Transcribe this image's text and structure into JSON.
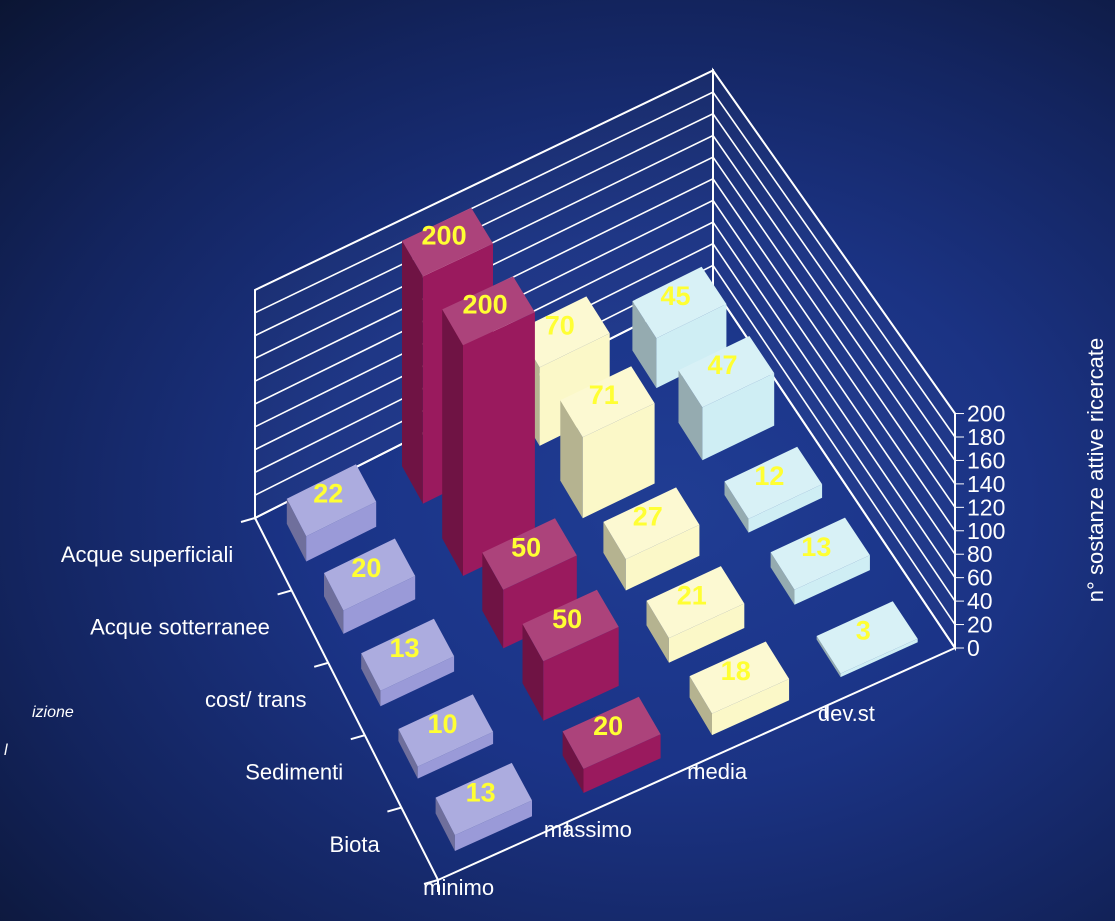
{
  "chart_data": {
    "type": "bar",
    "subtype": "3d-column",
    "categories": [
      "minimo",
      "massimo",
      "media",
      "dev.st"
    ],
    "series": [
      {
        "name": "Acque superficiali",
        "values": [
          22,
          200,
          70,
          45
        ]
      },
      {
        "name": "Acque sotterranee",
        "values": [
          20,
          200,
          71,
          47
        ]
      },
      {
        "name": "cost/   trans",
        "values": [
          13,
          50,
          27,
          12
        ]
      },
      {
        "name": "Sedimenti",
        "values": [
          10,
          50,
          21,
          13
        ]
      },
      {
        "name": "Biota",
        "values": [
          13,
          20,
          18,
          3
        ]
      }
    ],
    "ylabel": "n° sostanze attive ricercate",
    "yticks": [
      "0",
      "20",
      "40",
      "60",
      "80",
      "100",
      "120",
      "140",
      "160",
      "180",
      "200"
    ],
    "ylim": [
      0,
      200
    ],
    "grid": true,
    "colors": {
      "minimo": "#9a9ad8",
      "massimo": "#9a1a5e",
      "media": "#fbf8c8",
      "dev.st": "#cfeef4"
    }
  },
  "fragments": {
    "left_text_1": "izione",
    "left_text_2": "l"
  }
}
